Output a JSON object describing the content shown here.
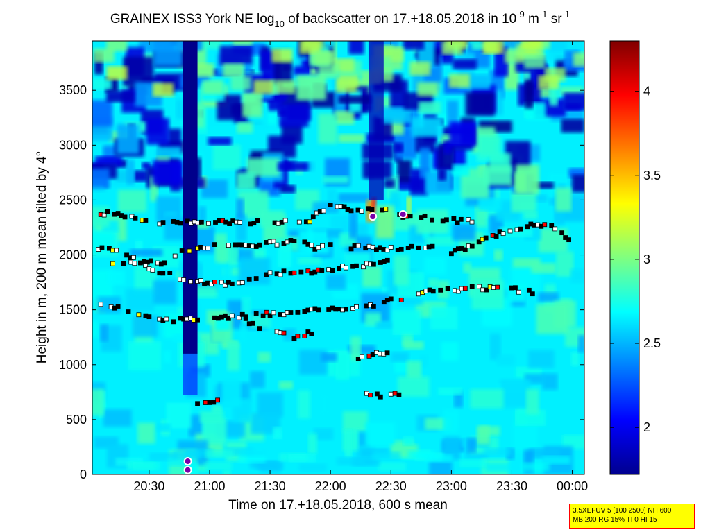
{
  "chart_data": {
    "type": "heatmap",
    "title": {
      "prefix": "GRAINEX ISS3 York NE log",
      "sub": "10",
      "middle": " of backscatter on 17.+18.05.2018 in 10",
      "sup1": "-9",
      "m": " m",
      "sup2": "-1",
      "sr": " sr",
      "sup3": "-1"
    },
    "xlabel": "Time on 17.+18.05.2018, 600 s mean",
    "ylabel": "Height in m, 200 m mean tilted by 4°",
    "x_ticks": [
      "20:30",
      "21:00",
      "21:30",
      "22:00",
      "22:30",
      "23:00",
      "23:30",
      "00:00"
    ],
    "x_tick_hours": [
      20.5,
      21.0,
      21.5,
      22.0,
      22.5,
      23.0,
      23.5,
      24.0
    ],
    "xlim_hours": [
      20.03,
      24.1
    ],
    "y_ticks": [
      0,
      500,
      1000,
      1500,
      2000,
      2500,
      3000,
      3500
    ],
    "ylim": [
      0,
      3950
    ],
    "colorbar": {
      "ticks": [
        2,
        2.5,
        3,
        3.5,
        4
      ],
      "tick_labels": [
        "2",
        "2.5",
        "3",
        "3.5",
        "4"
      ],
      "range": [
        1.72,
        4.3
      ],
      "colormap": "jet"
    },
    "background_level": 2.65,
    "gap_column": {
      "start": 20.78,
      "end": 20.9,
      "value": 1.75,
      "from_height": 1100
    },
    "low_columns": [
      {
        "start": 22.32,
        "end": 22.44,
        "value": 1.85,
        "from_height": 2500
      }
    ],
    "layers": [
      {
        "name": "layer-2000",
        "points": [
          [
            20.05,
            2060
          ],
          [
            20.2,
            2050
          ],
          [
            20.4,
            1950
          ],
          [
            20.6,
            1930
          ],
          [
            20.8,
            2050
          ],
          [
            20.9,
            2050
          ],
          [
            21.1,
            2100
          ],
          [
            21.3,
            2080
          ],
          [
            21.5,
            2100
          ],
          [
            21.7,
            2130
          ],
          [
            21.9,
            2060
          ],
          [
            22.0,
            2080
          ],
          [
            22.2,
            2070
          ],
          [
            22.5,
            2060
          ],
          [
            22.7,
            2070
          ],
          [
            22.9,
            2060
          ],
          [
            23.0,
            2020
          ],
          [
            23.2,
            2100
          ],
          [
            23.4,
            2200
          ],
          [
            23.6,
            2260
          ],
          [
            23.8,
            2280
          ],
          [
            24.0,
            2120
          ]
        ]
      },
      {
        "name": "layer-1800",
        "points": [
          [
            20.2,
            1940
          ],
          [
            20.35,
            1920
          ],
          [
            20.5,
            1880
          ],
          [
            20.9,
            1750
          ],
          [
            21.1,
            1740
          ],
          [
            21.3,
            1760
          ],
          [
            21.5,
            1830
          ],
          [
            21.7,
            1840
          ],
          [
            21.9,
            1850
          ],
          [
            22.1,
            1900
          ],
          [
            22.3,
            1910
          ],
          [
            22.5,
            1950
          ]
        ]
      },
      {
        "name": "layer-1500",
        "points": [
          [
            20.1,
            1550
          ],
          [
            20.3,
            1500
          ],
          [
            20.5,
            1450
          ],
          [
            20.7,
            1400
          ],
          [
            22.3,
            1530
          ],
          [
            22.5,
            1580
          ],
          [
            22.7,
            1650
          ],
          [
            23.0,
            1680
          ],
          [
            23.2,
            1700
          ],
          [
            23.5,
            1690
          ],
          [
            23.7,
            1650
          ]
        ]
      },
      {
        "name": "layer-2400",
        "points": [
          [
            20.1,
            2380
          ],
          [
            20.3,
            2360
          ],
          [
            20.5,
            2300
          ],
          [
            21.8,
            2300
          ],
          [
            22.0,
            2450
          ],
          [
            22.2,
            2400
          ],
          [
            22.4,
            2420
          ],
          [
            22.6,
            2360
          ],
          [
            22.9,
            2320
          ],
          [
            23.2,
            2300
          ]
        ]
      },
      {
        "name": "layer-1300",
        "points": [
          [
            21.3,
            1400
          ],
          [
            21.5,
            1300
          ],
          [
            21.7,
            1250
          ],
          [
            21.9,
            1320
          ]
        ]
      },
      {
        "name": "layer-1000",
        "points": [
          [
            22.2,
            1050
          ],
          [
            22.35,
            1100
          ],
          [
            22.5,
            1110
          ]
        ]
      },
      {
        "name": "layer-700",
        "points": [
          [
            22.3,
            730
          ],
          [
            22.5,
            720
          ],
          [
            22.6,
            720
          ]
        ]
      },
      {
        "name": "layer-700-left",
        "points": [
          [
            20.9,
            640
          ],
          [
            21.0,
            660
          ],
          [
            21.1,
            700
          ]
        ]
      }
    ],
    "warm_plumes": [
      {
        "x": 22.33,
        "y": 2400,
        "width": 0.07,
        "height": 200,
        "value": 3.6
      },
      {
        "x": 22.36,
        "y": 2450,
        "width": 0.04,
        "height": 150,
        "value": 3.9
      },
      {
        "x": 22.65,
        "y": 2450,
        "width": 0.04,
        "height": 160,
        "value": 3.2
      },
      {
        "x": 22.45,
        "y": 2300,
        "width": 0.15,
        "height": 300,
        "value": 3.0
      }
    ],
    "markers": [
      {
        "x": 22.35,
        "y": 2350,
        "kind": "circle"
      },
      {
        "x": 22.6,
        "y": 2370,
        "kind": "circle"
      },
      {
        "x": 20.82,
        "y": 120,
        "kind": "circle"
      },
      {
        "x": 20.82,
        "y": 40,
        "kind": "circle"
      }
    ]
  },
  "info_box": {
    "line1": "3.5XEFUV 5 [100 2500] NH 600",
    "line2": "MB 200 RG 15% TI 0 HI 15"
  }
}
